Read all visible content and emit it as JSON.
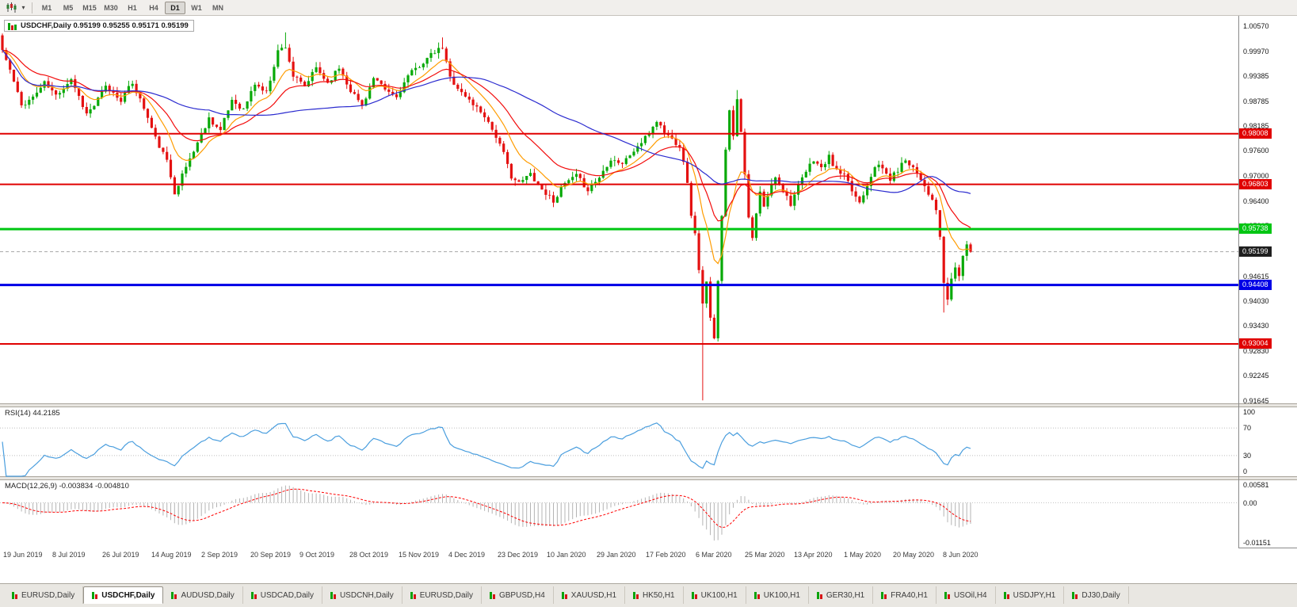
{
  "toolbar": {
    "timeframes": [
      "M1",
      "M5",
      "M15",
      "M30",
      "H1",
      "H4",
      "D1",
      "W1",
      "MN"
    ],
    "active_timeframe": "D1"
  },
  "chart_window": {
    "title": "USDCHF,Daily 0.95199 0.95255 0.95171 0.95199",
    "symbol": "USDCHF",
    "period": "Daily",
    "ohlc": {
      "open": "0.95199",
      "high": "0.95255",
      "low": "0.95171",
      "close": "0.95199"
    }
  },
  "main_chart": {
    "y_axis_ticks": [
      "1.00570",
      "0.99970",
      "0.99385",
      "0.98785",
      "0.98185",
      "0.97600",
      "0.97000",
      "0.96400",
      "0.95815",
      "0.94615",
      "0.94030",
      "0.93430",
      "0.92830",
      "0.92245",
      "0.91645"
    ],
    "current_price": "0.95199",
    "hlines": [
      {
        "value": 0.98008,
        "label": "0.98008",
        "color": "#e00000",
        "width": 2
      },
      {
        "value": 0.96803,
        "label": "0.96803",
        "color": "#e00000",
        "width": 2
      },
      {
        "value": 0.95738,
        "label": "0.95738",
        "color": "#00c613",
        "width": 3
      },
      {
        "value": 0.94408,
        "label": "0.94408",
        "color": "#0000e6",
        "width": 3
      },
      {
        "value": 0.93004,
        "label": "0.93004",
        "color": "#e00000",
        "width": 2
      }
    ]
  },
  "rsi_panel": {
    "label": "RSI(14) 44.2185",
    "levels": [
      "100",
      "70",
      "30",
      "0"
    ]
  },
  "macd_panel": {
    "label": "MACD(12,26,9) -0.003834 -0.004810",
    "levels": [
      "0.00581",
      "0.00",
      "-0.01151"
    ]
  },
  "x_axis": {
    "labels": [
      "19 Jun 2019",
      "8 Jul 2019",
      "26 Jul 2019",
      "14 Aug 2019",
      "2 Sep 2019",
      "20 Sep 2019",
      "9 Oct 2019",
      "28 Oct 2019",
      "15 Nov 2019",
      "4 Dec 2019",
      "23 Dec 2019",
      "10 Jan 2020",
      "29 Jan 2020",
      "17 Feb 2020",
      "6 Mar 2020",
      "25 Mar 2020",
      "13 Apr 2020",
      "1 May 2020",
      "20 May 2020",
      "8 Jun 2020"
    ]
  },
  "tabs": [
    "EURUSD,Daily",
    "USDCHF,Daily",
    "AUDUSD,Daily",
    "USDCAD,Daily",
    "USDCNH,Daily",
    "EURUSD,Daily",
    "GBPUSD,H4",
    "XAUUSD,H1",
    "HK50,H1",
    "UK100,H1",
    "UK100,H1",
    "GER30,H1",
    "FRA40,H1",
    "USOil,H4",
    "USDJPY,H1",
    "DJ30,Daily"
  ],
  "active_tab_index": 1,
  "chart_data": {
    "type": "candlestick",
    "symbol": "USDCHF",
    "timeframe": "Daily",
    "current_ohlc": {
      "open": 0.95199,
      "high": 0.95255,
      "low": 0.95171,
      "close": 0.95199
    },
    "y_range": {
      "top": 1.0057,
      "bottom": 0.91645
    },
    "candle_count": 254,
    "seed": 11,
    "noise": 0.0012,
    "up_color": "#08a908",
    "down_color": "#e41111",
    "current_price_line_color": "#a8a8a8",
    "close_anchors": [
      [
        0,
        1.0
      ],
      [
        2,
        0.9952
      ],
      [
        5,
        0.9868
      ],
      [
        8,
        0.9888
      ],
      [
        11,
        0.9922
      ],
      [
        14,
        0.9892
      ],
      [
        18,
        0.9932
      ],
      [
        22,
        0.9848
      ],
      [
        24,
        0.9868
      ],
      [
        27,
        0.9912
      ],
      [
        31,
        0.9882
      ],
      [
        34,
        0.9922
      ],
      [
        37,
        0.9862
      ],
      [
        40,
        0.979
      ],
      [
        43,
        0.9735
      ],
      [
        45,
        0.9662
      ],
      [
        48,
        0.9722
      ],
      [
        51,
        0.978
      ],
      [
        54,
        0.9838
      ],
      [
        57,
        0.9808
      ],
      [
        60,
        0.9882
      ],
      [
        63,
        0.9858
      ],
      [
        66,
        0.992
      ],
      [
        69,
        0.9898
      ],
      [
        72,
        0.9998
      ],
      [
        74,
        1.001
      ],
      [
        76,
        0.9938
      ],
      [
        79,
        0.9912
      ],
      [
        82,
        0.9958
      ],
      [
        85,
        0.9922
      ],
      [
        88,
        0.9958
      ],
      [
        91,
        0.9905
      ],
      [
        94,
        0.9868
      ],
      [
        97,
        0.9932
      ],
      [
        100,
        0.9905
      ],
      [
        103,
        0.9888
      ],
      [
        106,
        0.9938
      ],
      [
        110,
        0.9972
      ],
      [
        113,
        0.9995
      ],
      [
        115,
        1.0005
      ],
      [
        117,
        0.9935
      ],
      [
        120,
        0.9898
      ],
      [
        123,
        0.9872
      ],
      [
        126,
        0.9845
      ],
      [
        129,
        0.9795
      ],
      [
        131,
        0.9752
      ],
      [
        133,
        0.97
      ],
      [
        135,
        0.9682
      ],
      [
        138,
        0.9706
      ],
      [
        141,
        0.9668
      ],
      [
        144,
        0.9642
      ],
      [
        147,
        0.9682
      ],
      [
        150,
        0.97
      ],
      [
        153,
        0.9668
      ],
      [
        156,
        0.9697
      ],
      [
        159,
        0.9742
      ],
      [
        162,
        0.973
      ],
      [
        165,
        0.976
      ],
      [
        168,
        0.979
      ],
      [
        171,
        0.9832
      ],
      [
        173,
        0.9805
      ],
      [
        175,
        0.9788
      ],
      [
        177,
        0.9772
      ],
      [
        178,
        0.9738
      ],
      [
        179,
        0.968
      ],
      [
        180,
        0.961
      ],
      [
        181,
        0.956
      ],
      [
        182,
        0.948
      ],
      [
        183,
        0.9395
      ],
      [
        184,
        0.9445
      ],
      [
        185,
        0.936
      ],
      [
        186,
        0.931
      ],
      [
        187,
        0.9455
      ],
      [
        188,
        0.961
      ],
      [
        189,
        0.976
      ],
      [
        190,
        0.986
      ],
      [
        191,
        0.98
      ],
      [
        192,
        0.9885
      ],
      [
        193,
        0.981
      ],
      [
        194,
        0.97
      ],
      [
        195,
        0.96
      ],
      [
        196,
        0.955
      ],
      [
        197,
        0.961
      ],
      [
        198,
        0.966
      ],
      [
        199,
        0.9625
      ],
      [
        200,
        0.9655
      ],
      [
        202,
        0.97
      ],
      [
        204,
        0.9668
      ],
      [
        206,
        0.9635
      ],
      [
        208,
        0.9675
      ],
      [
        210,
        0.971
      ],
      [
        212,
        0.974
      ],
      [
        214,
        0.9718
      ],
      [
        216,
        0.9745
      ],
      [
        218,
        0.9712
      ],
      [
        220,
        0.97
      ],
      [
        222,
        0.9665
      ],
      [
        224,
        0.9638
      ],
      [
        226,
        0.968
      ],
      [
        228,
        0.9726
      ],
      [
        230,
        0.9718
      ],
      [
        232,
        0.9692
      ],
      [
        234,
        0.9715
      ],
      [
        236,
        0.974
      ],
      [
        238,
        0.9722
      ],
      [
        240,
        0.9695
      ],
      [
        242,
        0.966
      ],
      [
        244,
        0.9618
      ],
      [
        245,
        0.9556
      ],
      [
        246,
        0.944
      ],
      [
        247,
        0.9408
      ],
      [
        248,
        0.9455
      ],
      [
        249,
        0.9482
      ],
      [
        250,
        0.9465
      ],
      [
        251,
        0.951
      ],
      [
        252,
        0.9532
      ],
      [
        253,
        0.95199
      ]
    ],
    "wick_overrides": [
      {
        "i": 45,
        "low": 0.9659
      },
      {
        "i": 74,
        "high": 1.0042
      },
      {
        "i": 115,
        "high": 1.003
      },
      {
        "i": 183,
        "low": 0.9166
      },
      {
        "i": 192,
        "high": 0.9905
      },
      {
        "i": 246,
        "low": 0.9375
      }
    ],
    "moving_averages": [
      {
        "period": 10,
        "type": "ema",
        "color": "#ff9c00"
      },
      {
        "period": 22,
        "type": "ema",
        "color": "#f20c0c"
      },
      {
        "period": 55,
        "type": "sma",
        "color": "#2b2bcf"
      }
    ],
    "indicators": {
      "rsi": {
        "period": 14,
        "value": 44.2185,
        "color": "#4a9ede",
        "levels": [
          70,
          30
        ]
      },
      "macd": {
        "fast": 12,
        "slow": 26,
        "signal": 9,
        "value": -0.003834,
        "signal_value": -0.00481,
        "range": {
          "top": 0.00581,
          "bottom": -0.01151
        },
        "histogram_color": "#b4b4b4",
        "signal_color": "#ff0000"
      }
    }
  }
}
